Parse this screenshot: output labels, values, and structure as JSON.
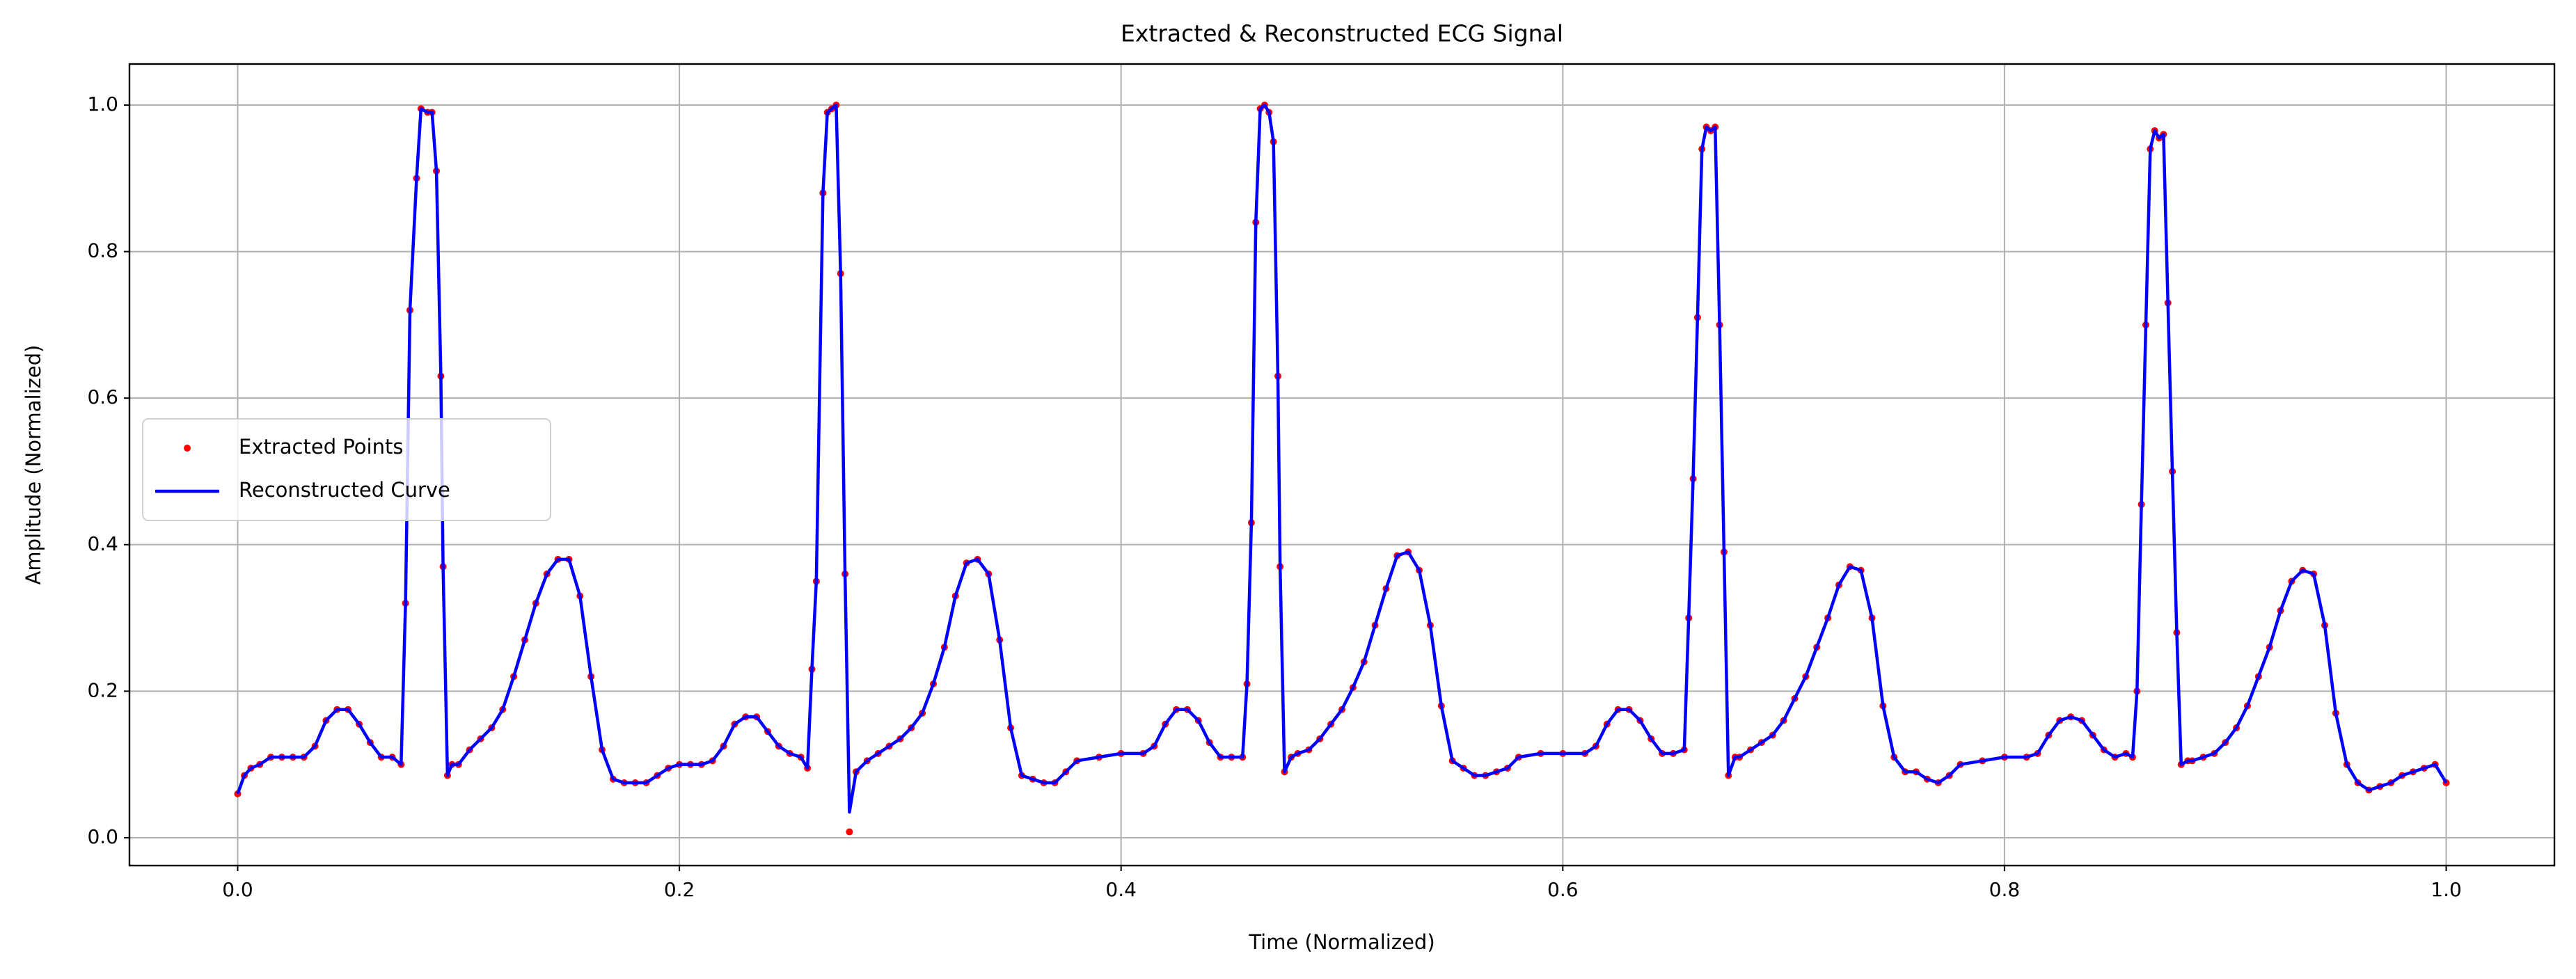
{
  "chart_data": {
    "type": "line",
    "title": "Extracted & Reconstructed ECG Signal",
    "x_label": "Time (Normalized)",
    "y_label": "Amplitude (Normalized)",
    "xlim": [
      -0.049,
      1.049
    ],
    "ylim": [
      -0.038,
      1.056
    ],
    "xticks": [
      {
        "value": 0,
        "label": "0.0"
      },
      0.2,
      0.4,
      0.6,
      0.8,
      {
        "value": 1,
        "label": "1.0"
      }
    ],
    "yticks": [
      {
        "value": 0,
        "label": "0.0"
      },
      0.2,
      0.4,
      0.6,
      0.8,
      {
        "value": 1,
        "label": "1.0"
      }
    ],
    "grid": true,
    "legend": "center left",
    "x": [
      0,
      0.003,
      0.006,
      0.01,
      0.015,
      0.02,
      0.025,
      0.03,
      0.035,
      0.04,
      0.045,
      0.05,
      0.055,
      0.06,
      0.065,
      0.07,
      0.074,
      0.076,
      0.078,
      0.081,
      0.083,
      0.086,
      0.088,
      0.09,
      0.092,
      0.093,
      0.095,
      0.097,
      0.1,
      0.105,
      0.11,
      0.115,
      0.12,
      0.125,
      0.13,
      0.135,
      0.14,
      0.145,
      0.15,
      0.155,
      0.16,
      0.165,
      0.17,
      0.175,
      0.18,
      0.185,
      0.19,
      0.195,
      0.2,
      0.205,
      0.21,
      0.215,
      0.22,
      0.225,
      0.23,
      0.235,
      0.24,
      0.245,
      0.25,
      0.255,
      0.258,
      0.26,
      0.262,
      0.265,
      0.267,
      0.269,
      0.271,
      0.273,
      0.275,
      0.277,
      0.28,
      0.285,
      0.29,
      0.295,
      0.3,
      0.305,
      0.31,
      0.315,
      0.32,
      0.325,
      0.33,
      0.335,
      0.34,
      0.345,
      0.35,
      0.355,
      0.36,
      0.365,
      0.37,
      0.375,
      0.38,
      0.39,
      0.4,
      0.41,
      0.415,
      0.42,
      0.425,
      0.43,
      0.435,
      0.44,
      0.445,
      0.45,
      0.455,
      0.457,
      0.459,
      0.461,
      0.463,
      0.465,
      0.467,
      0.469,
      0.471,
      0.472,
      0.474,
      0.477,
      0.48,
      0.485,
      0.49,
      0.495,
      0.5,
      0.505,
      0.51,
      0.515,
      0.52,
      0.525,
      0.53,
      0.535,
      0.54,
      0.545,
      0.55,
      0.555,
      0.56,
      0.565,
      0.57,
      0.575,
      0.58,
      0.59,
      0.6,
      0.61,
      0.615,
      0.62,
      0.625,
      0.63,
      0.635,
      0.64,
      0.645,
      0.65,
      0.655,
      0.657,
      0.659,
      0.661,
      0.663,
      0.665,
      0.667,
      0.669,
      0.671,
      0.673,
      0.675,
      0.678,
      0.68,
      0.685,
      0.69,
      0.695,
      0.7,
      0.705,
      0.71,
      0.715,
      0.72,
      0.725,
      0.73,
      0.735,
      0.74,
      0.745,
      0.75,
      0.755,
      0.76,
      0.765,
      0.77,
      0.775,
      0.78,
      0.79,
      0.8,
      0.81,
      0.815,
      0.82,
      0.825,
      0.83,
      0.835,
      0.84,
      0.845,
      0.85,
      0.855,
      0.858,
      0.86,
      0.862,
      0.864,
      0.866,
      0.868,
      0.87,
      0.872,
      0.874,
      0.876,
      0.878,
      0.88,
      0.883,
      0.885,
      0.89,
      0.895,
      0.9,
      0.905,
      0.91,
      0.915,
      0.92,
      0.925,
      0.93,
      0.935,
      0.94,
      0.945,
      0.95,
      0.955,
      0.96,
      0.965,
      0.97,
      0.975,
      0.98,
      0.985,
      0.99,
      0.995,
      1.0
    ],
    "series": [
      {
        "name": "Extracted Points",
        "color": "#ff0000",
        "style": "markers",
        "values": [
          0.06,
          0.085,
          0.095,
          0.1,
          0.11,
          0.11,
          0.11,
          0.11,
          0.125,
          0.16,
          0.175,
          0.175,
          0.155,
          0.13,
          0.11,
          0.11,
          0.1,
          0.32,
          0.72,
          0.9,
          0.995,
          0.99,
          0.99,
          0.91,
          0.63,
          0.37,
          0.085,
          0.1,
          0.1,
          0.12,
          0.135,
          0.15,
          0.175,
          0.22,
          0.27,
          0.32,
          0.36,
          0.38,
          0.38,
          0.33,
          0.22,
          0.12,
          0.08,
          0.075,
          0.075,
          0.075,
          0.085,
          0.095,
          0.1,
          0.1,
          0.1,
          0.105,
          0.125,
          0.155,
          0.165,
          0.165,
          0.145,
          0.125,
          0.115,
          0.11,
          0.095,
          0.23,
          0.35,
          0.88,
          0.99,
          0.995,
          1.0,
          0.77,
          0.36,
          0.008,
          0.09,
          0.105,
          0.115,
          0.125,
          0.135,
          0.15,
          0.17,
          0.21,
          0.26,
          0.33,
          0.375,
          0.38,
          0.36,
          0.27,
          0.15,
          0.085,
          0.08,
          0.075,
          0.075,
          0.09,
          0.105,
          0.11,
          0.115,
          0.115,
          0.125,
          0.155,
          0.175,
          0.175,
          0.16,
          0.13,
          0.11,
          0.11,
          0.11,
          0.21,
          0.43,
          0.84,
          0.995,
          1.0,
          0.99,
          0.95,
          0.63,
          0.37,
          0.09,
          0.11,
          0.115,
          0.12,
          0.135,
          0.155,
          0.175,
          0.205,
          0.24,
          0.29,
          0.34,
          0.385,
          0.39,
          0.365,
          0.29,
          0.18,
          0.105,
          0.095,
          0.085,
          0.085,
          0.09,
          0.095,
          0.11,
          0.115,
          0.115,
          0.115,
          0.125,
          0.155,
          0.175,
          0.175,
          0.16,
          0.135,
          0.115,
          0.115,
          0.12,
          0.3,
          0.49,
          0.71,
          0.94,
          0.97,
          0.965,
          0.97,
          0.7,
          0.39,
          0.085,
          0.11,
          0.11,
          0.12,
          0.13,
          0.14,
          0.16,
          0.19,
          0.22,
          0.26,
          0.3,
          0.345,
          0.37,
          0.365,
          0.3,
          0.18,
          0.11,
          0.09,
          0.09,
          0.08,
          0.075,
          0.085,
          0.1,
          0.105,
          0.11,
          0.11,
          0.115,
          0.14,
          0.16,
          0.165,
          0.16,
          0.14,
          0.12,
          0.11,
          0.115,
          0.11,
          0.2,
          0.455,
          0.7,
          0.94,
          0.965,
          0.955,
          0.96,
          0.73,
          0.5,
          0.28,
          0.1,
          0.105,
          0.105,
          0.11,
          0.115,
          0.13,
          0.15,
          0.18,
          0.22,
          0.26,
          0.31,
          0.35,
          0.365,
          0.36,
          0.29,
          0.17,
          0.1,
          0.075,
          0.065,
          0.07,
          0.075,
          0.085,
          0.09,
          0.095,
          0.1,
          0.075
        ]
      },
      {
        "name": "Reconstructed Curve",
        "color": "#0000ff",
        "style": "line",
        "values": [
          0.06,
          0.085,
          0.095,
          0.1,
          0.11,
          0.11,
          0.11,
          0.11,
          0.125,
          0.16,
          0.175,
          0.175,
          0.155,
          0.13,
          0.11,
          0.11,
          0.1,
          0.32,
          0.72,
          0.9,
          0.995,
          0.99,
          0.99,
          0.91,
          0.63,
          0.37,
          0.085,
          0.1,
          0.1,
          0.12,
          0.135,
          0.15,
          0.175,
          0.22,
          0.27,
          0.32,
          0.36,
          0.38,
          0.38,
          0.33,
          0.22,
          0.12,
          0.08,
          0.075,
          0.075,
          0.075,
          0.085,
          0.095,
          0.1,
          0.1,
          0.1,
          0.105,
          0.125,
          0.155,
          0.165,
          0.165,
          0.145,
          0.125,
          0.115,
          0.11,
          0.095,
          0.23,
          0.35,
          0.88,
          0.99,
          0.995,
          1.0,
          0.77,
          0.36,
          0.035,
          0.09,
          0.105,
          0.115,
          0.125,
          0.135,
          0.15,
          0.17,
          0.21,
          0.26,
          0.33,
          0.375,
          0.38,
          0.36,
          0.27,
          0.15,
          0.085,
          0.08,
          0.075,
          0.075,
          0.09,
          0.105,
          0.11,
          0.115,
          0.115,
          0.125,
          0.155,
          0.175,
          0.175,
          0.16,
          0.13,
          0.11,
          0.11,
          0.11,
          0.21,
          0.43,
          0.84,
          0.995,
          1.0,
          0.99,
          0.95,
          0.63,
          0.37,
          0.09,
          0.11,
          0.115,
          0.12,
          0.135,
          0.155,
          0.175,
          0.205,
          0.24,
          0.29,
          0.34,
          0.385,
          0.39,
          0.365,
          0.29,
          0.18,
          0.105,
          0.095,
          0.085,
          0.085,
          0.09,
          0.095,
          0.11,
          0.115,
          0.115,
          0.115,
          0.125,
          0.155,
          0.175,
          0.175,
          0.16,
          0.135,
          0.115,
          0.115,
          0.12,
          0.3,
          0.49,
          0.71,
          0.94,
          0.97,
          0.965,
          0.97,
          0.7,
          0.39,
          0.085,
          0.11,
          0.11,
          0.12,
          0.13,
          0.14,
          0.16,
          0.19,
          0.22,
          0.26,
          0.3,
          0.345,
          0.37,
          0.365,
          0.3,
          0.18,
          0.11,
          0.09,
          0.09,
          0.08,
          0.075,
          0.085,
          0.1,
          0.105,
          0.11,
          0.11,
          0.115,
          0.14,
          0.16,
          0.165,
          0.16,
          0.14,
          0.12,
          0.11,
          0.115,
          0.11,
          0.2,
          0.455,
          0.7,
          0.94,
          0.965,
          0.955,
          0.96,
          0.73,
          0.5,
          0.28,
          0.1,
          0.105,
          0.105,
          0.11,
          0.115,
          0.13,
          0.15,
          0.18,
          0.22,
          0.26,
          0.31,
          0.35,
          0.365,
          0.36,
          0.29,
          0.17,
          0.1,
          0.075,
          0.065,
          0.07,
          0.075,
          0.085,
          0.09,
          0.095,
          0.1,
          0.075
        ]
      }
    ]
  }
}
